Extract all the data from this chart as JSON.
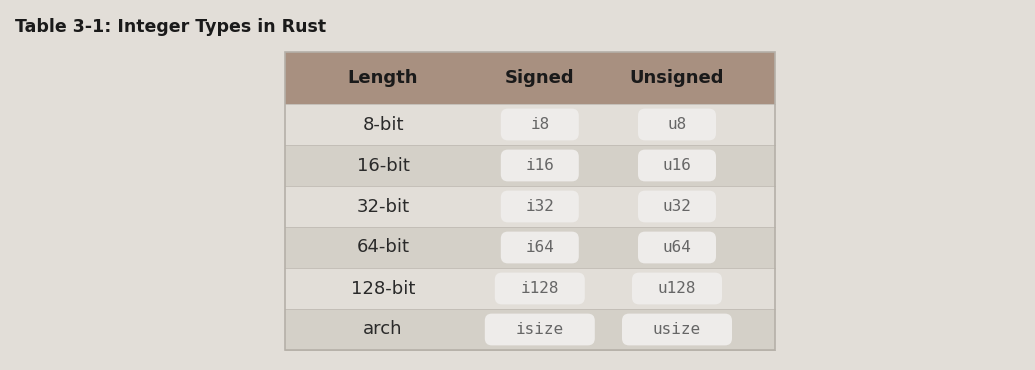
{
  "title": "Table 3-1: Integer Types in Rust",
  "title_fontsize": 12.5,
  "background_color": "#e2ded8",
  "header_bg_color": "#a89080",
  "row_bg_light": "#e2ded8",
  "row_bg_dark": "#d4d0c8",
  "code_bg_color": "#eeecea",
  "header_text_color": "#1a1a1a",
  "body_text_color": "#2a2a2a",
  "code_text_color": "#666666",
  "headers": [
    "Length",
    "Signed",
    "Unsigned"
  ],
  "rows": [
    [
      "8-bit",
      "i8",
      "u8"
    ],
    [
      "16-bit",
      "i16",
      "u16"
    ],
    [
      "32-bit",
      "i32",
      "u32"
    ],
    [
      "64-bit",
      "i64",
      "u64"
    ],
    [
      "128-bit",
      "i128",
      "u128"
    ],
    [
      "arch",
      "isize",
      "usize"
    ]
  ],
  "header_fontsize": 13,
  "body_fontsize": 13,
  "code_fontsize": 11.5
}
